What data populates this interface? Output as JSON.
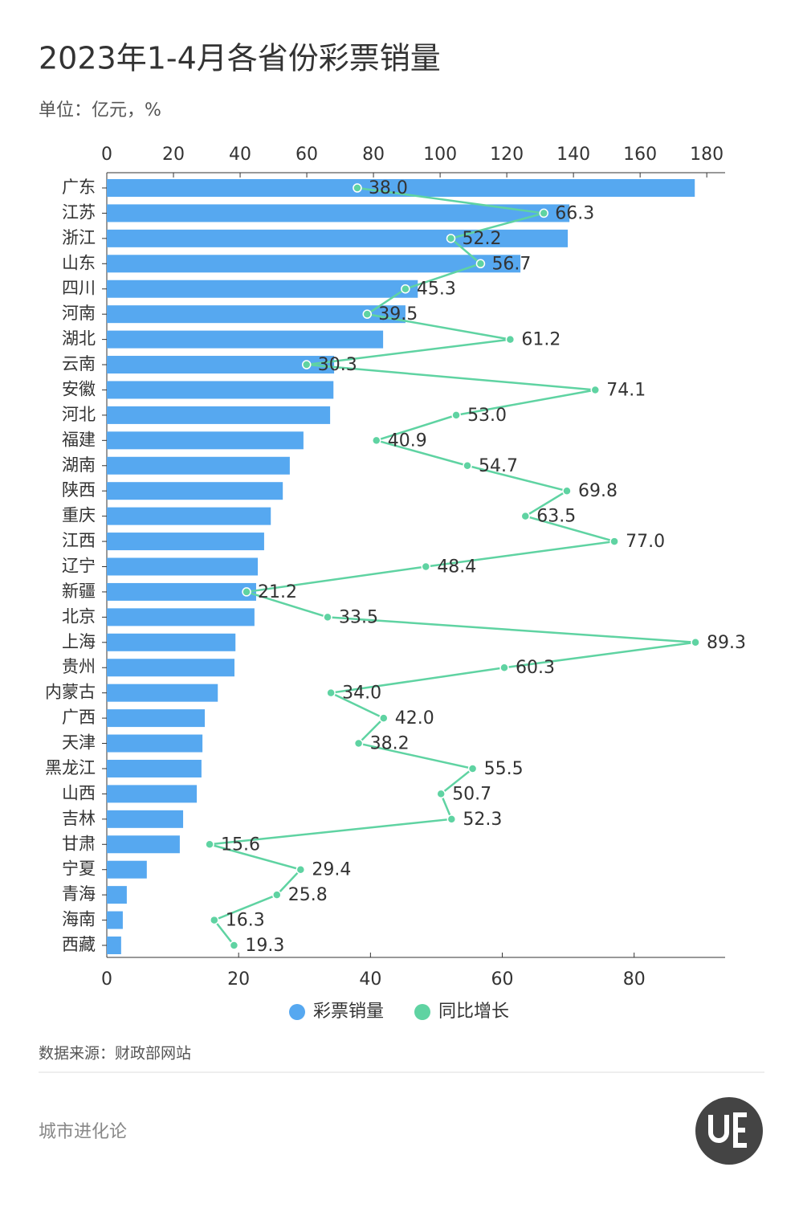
{
  "chart_data": {
    "type": "bar",
    "title": "2023年1-4月各省份彩票销量",
    "subtitle": "单位：亿元，%",
    "categories": [
      "广东",
      "江苏",
      "浙江",
      "山东",
      "四川",
      "河南",
      "湖北",
      "云南",
      "安徽",
      "河北",
      "福建",
      "湖南",
      "陕西",
      "重庆",
      "江西",
      "辽宁",
      "新疆",
      "北京",
      "上海",
      "贵州",
      "内蒙古",
      "广西",
      "天津",
      "黑龙江",
      "山西",
      "吉林",
      "甘肃",
      "宁夏",
      "青海",
      "海南",
      "西藏"
    ],
    "xlim": [
      0,
      185.5
    ],
    "xticks": [
      0,
      20,
      40,
      60,
      80,
      100,
      120,
      140,
      160,
      180
    ],
    "x2lim": [
      0,
      93.8
    ],
    "x2ticks": [
      0,
      20,
      40,
      60,
      80
    ],
    "series": [
      {
        "name": "彩票销量",
        "color": "#56a8f0",
        "values": [
          176.4,
          138.8,
          138.3,
          124.1,
          93.3,
          89.6,
          82.9,
          68.2,
          68.0,
          67.0,
          59.0,
          54.9,
          52.8,
          49.2,
          47.2,
          45.3,
          44.8,
          44.3,
          38.6,
          38.3,
          33.3,
          29.4,
          28.7,
          28.4,
          27.0,
          22.9,
          21.9,
          12.0,
          6.0,
          4.8,
          4.3
        ]
      },
      {
        "name": "同比增长",
        "color": "#5fd3a2",
        "type": "line",
        "axis": "x2",
        "values": [
          38.0,
          66.3,
          52.2,
          56.7,
          45.3,
          39.5,
          61.2,
          30.3,
          74.1,
          53.0,
          40.9,
          54.7,
          69.8,
          63.5,
          77.0,
          48.4,
          21.2,
          33.5,
          89.3,
          60.3,
          34.0,
          42.0,
          38.2,
          55.5,
          50.7,
          52.3,
          15.6,
          29.4,
          25.8,
          16.3,
          19.3
        ],
        "value_labels": [
          "38.0",
          "66.3",
          "52.2",
          "56.7",
          "45.3",
          "39.5",
          "61.2",
          "30.3",
          "74.1",
          "53.0",
          "40.9",
          "54.7",
          "69.8",
          "63.5",
          "77.0",
          "48.4",
          "21.2",
          "33.5",
          "89.3",
          "60.3",
          "34.0",
          "42.0",
          "38.2",
          "55.5",
          "50.7",
          "52.3",
          "15.6",
          "29.4",
          "25.8",
          "16.3",
          "19.3"
        ]
      }
    ],
    "source": "数据来源：财政部网站",
    "brand": "城市进化论"
  }
}
